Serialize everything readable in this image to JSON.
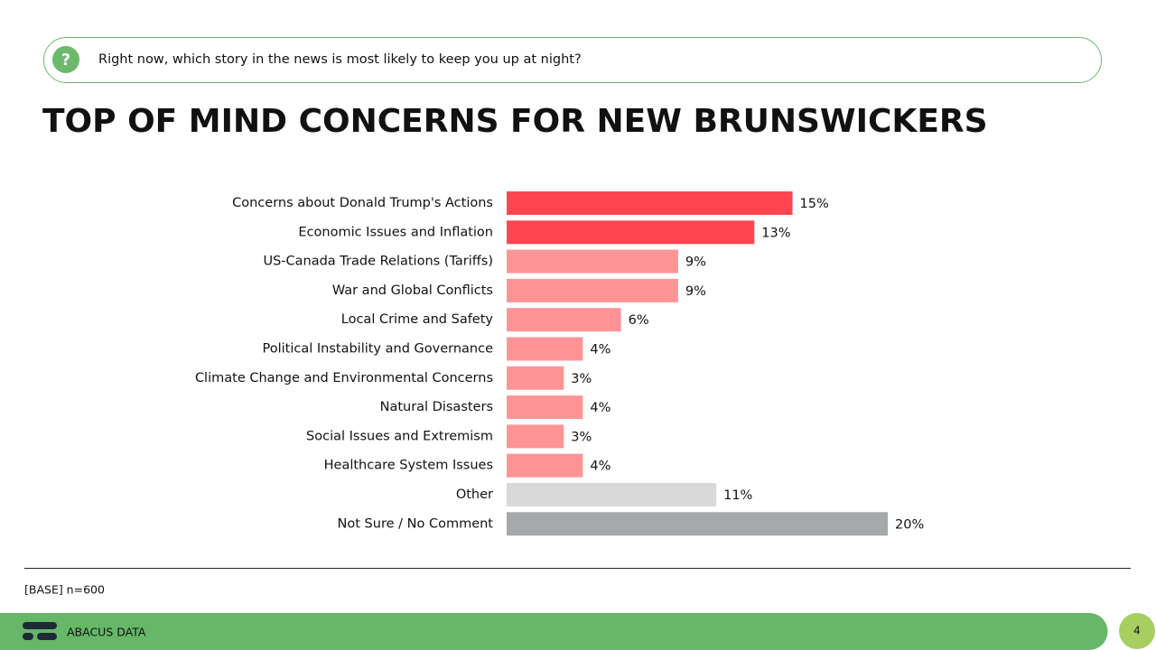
{
  "question": "Right now, which story in the news is most likely to keep you up at night?",
  "chart_data": {
    "type": "hbar",
    "title": "TOP OF MIND CONCERNS FOR NEW BRUNSWICKERS",
    "categories": [
      "Concerns about Donald Trump's Actions",
      "Economic Issues and Inflation",
      "US-Canada Trade Relations (Tariffs)",
      "War and Global Conflicts",
      "Local Crime and Safety",
      "Political Instability and Governance",
      "Climate Change and Environmental Concerns",
      "Natural Disasters",
      "Social Issues and Extremism",
      "Healthcare System Issues",
      "Other",
      "Not Sure / No Comment"
    ],
    "values": [
      15,
      13,
      9,
      9,
      6,
      4,
      3,
      4,
      3,
      4,
      11,
      20
    ],
    "value_labels": [
      "15%",
      "13%",
      "9%",
      "9%",
      "6%",
      "4%",
      "3%",
      "4%",
      "3%",
      "4%",
      "11%",
      "20%"
    ],
    "colors": [
      "#ff4650",
      "#ff4650",
      "#ff9497",
      "#ff9497",
      "#ff9497",
      "#ff9497",
      "#ff9497",
      "#ff9497",
      "#ff9497",
      "#ff9497",
      "#d9d9d9",
      "#a6a9aa"
    ]
  },
  "base_note": "[BASE] n=600",
  "footer": {
    "brand": "ABACUS DATA",
    "page_number": "4"
  }
}
